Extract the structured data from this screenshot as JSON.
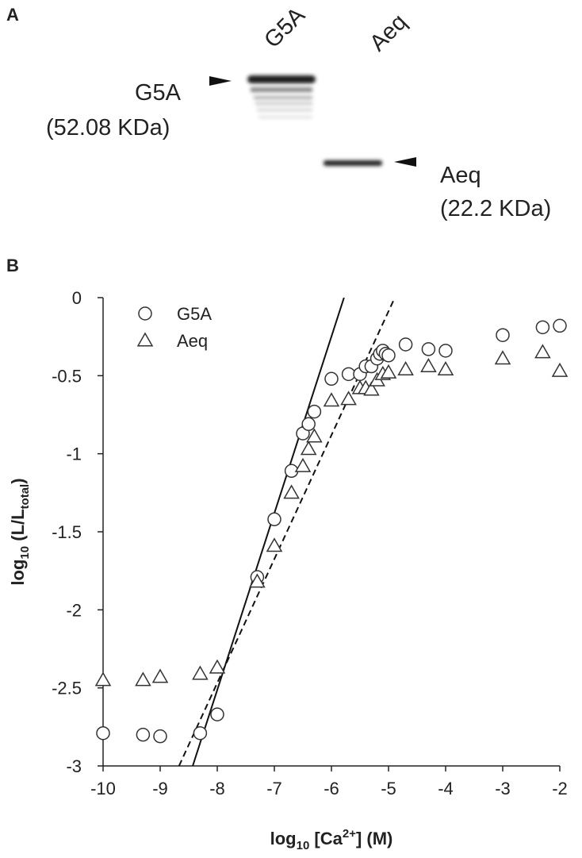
{
  "panel_a": {
    "label": "A",
    "lanes": [
      "G5A",
      "Aeq"
    ],
    "band_labels": [
      {
        "name": "G5A",
        "size": "(52.08 KDa)"
      },
      {
        "name": "Aeq",
        "size": "(22.2 KDa)"
      }
    ]
  },
  "chart_data": {
    "type": "scatter",
    "panel_label": "B",
    "x_label": [
      "log",
      "10",
      " [Ca",
      "2+",
      "] (M)"
    ],
    "y_label": [
      "log",
      "10",
      " (L/L",
      "total",
      ")"
    ],
    "xlim": [
      -10,
      -2
    ],
    "ylim": [
      -3,
      0
    ],
    "xticks": [
      -10,
      -9,
      -8,
      -7,
      -6,
      -5,
      -4,
      -3,
      -2
    ],
    "yticks": [
      0,
      -0.5,
      -1,
      -1.5,
      -2,
      -2.5,
      -3
    ],
    "series": [
      {
        "name": "G5A",
        "marker": "circle",
        "color": "#333333",
        "x": [
          -10,
          -9.3,
          -9,
          -8.3,
          -8,
          -7.3,
          -7,
          -6.7,
          -6.5,
          -6.4,
          -6.3,
          -6,
          -5.7,
          -5.5,
          -5.4,
          -5.3,
          -5.2,
          -5.15,
          -5.1,
          -5.05,
          -5,
          -4.7,
          -4.3,
          -4,
          -3,
          -2.3,
          -2
        ],
        "y": [
          -2.79,
          -2.8,
          -2.81,
          -2.79,
          -2.67,
          -1.79,
          -1.42,
          -1.11,
          -0.87,
          -0.81,
          -0.73,
          -0.52,
          -0.49,
          -0.49,
          -0.44,
          -0.44,
          -0.39,
          -0.36,
          -0.34,
          -0.36,
          -0.37,
          -0.3,
          -0.33,
          -0.34,
          -0.24,
          -0.19,
          -0.18
        ]
      },
      {
        "name": "Aeq",
        "marker": "triangle",
        "color": "#333333",
        "x": [
          -10,
          -9.3,
          -9,
          -8.3,
          -8,
          -7.3,
          -7,
          -6.7,
          -6.5,
          -6.4,
          -6.3,
          -6,
          -5.7,
          -5.5,
          -5.4,
          -5.3,
          -5.2,
          -5.1,
          -5,
          -4.7,
          -4.3,
          -4,
          -3,
          -2.3,
          -2
        ],
        "y": [
          -2.45,
          -2.45,
          -2.43,
          -2.41,
          -2.37,
          -1.82,
          -1.59,
          -1.25,
          -1.08,
          -0.97,
          -0.89,
          -0.66,
          -0.65,
          -0.58,
          -0.58,
          -0.59,
          -0.53,
          -0.49,
          -0.48,
          -0.46,
          -0.44,
          -0.46,
          -0.39,
          -0.35,
          -0.47
        ]
      }
    ],
    "fit_lines": [
      {
        "x": [
          -8.43,
          -5.78
        ],
        "y": [
          -3,
          0
        ],
        "dashed": false,
        "color": "#111111"
      },
      {
        "x": [
          -8.67,
          -4.89
        ],
        "y": [
          -3,
          0
        ],
        "dashed": true,
        "color": "#111111"
      }
    ],
    "legend": "top-left"
  }
}
